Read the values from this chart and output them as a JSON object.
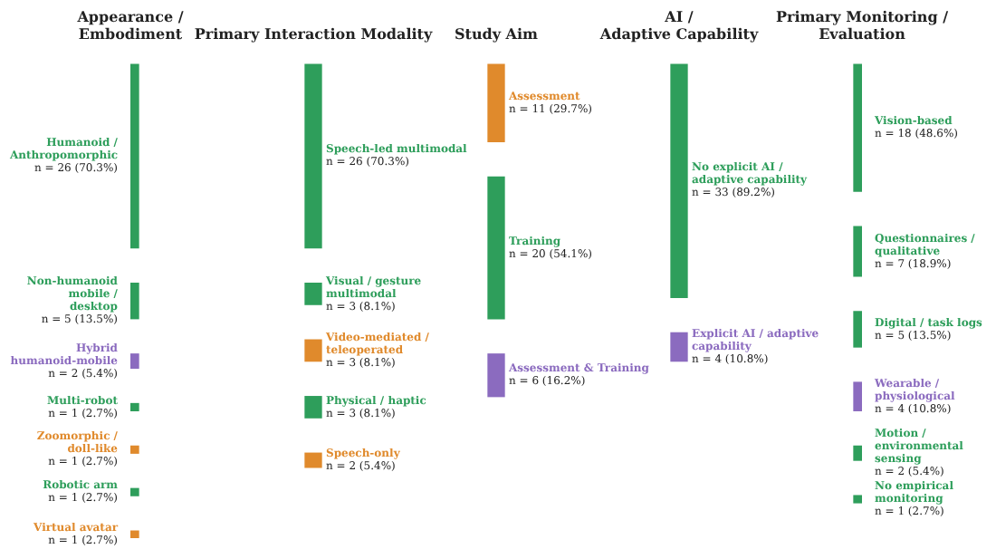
{
  "chart_data": {
    "type": "other",
    "categories": [
      "Appearance / Embodiment",
      "Primary Interaction Modality",
      "Study Aim",
      "AI / Adaptive Capability",
      "Primary Monitoring / Evaluation"
    ],
    "series": [
      {
        "name": "Humanoid / Anthropomorphic",
        "color": "#2e9e5b",
        "values": [
          26,
          null,
          null,
          null,
          null
        ],
        "value_labels": [
          "n = 26 (70.3%)",
          null,
          null,
          null,
          null
        ]
      },
      {
        "name": "Non-humanoid mobile / desktop",
        "color": "#2e9e5b",
        "values": [
          5,
          null,
          null,
          null,
          null
        ],
        "value_labels": [
          "n = 5 (13.5%)",
          null,
          null,
          null,
          null
        ]
      },
      {
        "name": "Hybrid humanoid-mobile",
        "color": "#8b6bbf",
        "values": [
          2,
          null,
          null,
          null,
          null
        ],
        "value_labels": [
          "n = 2 (5.4%)",
          null,
          null,
          null,
          null
        ]
      },
      {
        "name": "Multi-robot",
        "color": "#2e9e5b",
        "values": [
          1,
          null,
          null,
          null,
          null
        ],
        "value_labels": [
          "n = 1 (2.7%)",
          null,
          null,
          null,
          null
        ]
      },
      {
        "name": "Zoomorphic / doll-like",
        "color": "#e08a2c",
        "values": [
          1,
          null,
          null,
          null,
          null
        ],
        "value_labels": [
          "n = 1 (2.7%)",
          null,
          null,
          null,
          null
        ]
      },
      {
        "name": "Robotic arm",
        "color": "#2e9e5b",
        "values": [
          1,
          null,
          null,
          null,
          null
        ],
        "value_labels": [
          "n = 1 (2.7%)",
          null,
          null,
          null,
          null
        ]
      },
      {
        "name": "Virtual avatar",
        "color": "#e08a2c",
        "values": [
          1,
          null,
          null,
          null,
          null
        ],
        "value_labels": [
          "n = 1 (2.7%)",
          null,
          null,
          null,
          null
        ]
      },
      {
        "name": "Speech-led multimodal",
        "color": "#2e9e5b",
        "values": [
          null,
          26,
          null,
          null,
          null
        ],
        "value_labels": [
          null,
          "n = 26 (70.3%)",
          null,
          null,
          null
        ]
      },
      {
        "name": "Visual / gesture multimodal",
        "color": "#2e9e5b",
        "values": [
          null,
          3,
          null,
          null,
          null
        ],
        "value_labels": [
          null,
          "n = 3 (8.1%)",
          null,
          null,
          null
        ]
      },
      {
        "name": "Video-mediated / teleoperated",
        "color": "#e08a2c",
        "values": [
          null,
          3,
          null,
          null,
          null
        ],
        "value_labels": [
          null,
          "n = 3 (8.1%)",
          null,
          null,
          null
        ]
      },
      {
        "name": "Physical / haptic",
        "color": "#2e9e5b",
        "values": [
          null,
          3,
          null,
          null,
          null
        ],
        "value_labels": [
          null,
          "n = 3 (8.1%)",
          null,
          null,
          null
        ]
      },
      {
        "name": "Speech-only",
        "color": "#e08a2c",
        "values": [
          null,
          2,
          null,
          null,
          null
        ],
        "value_labels": [
          null,
          "n = 2 (5.4%)",
          null,
          null,
          null
        ]
      },
      {
        "name": "Assessment",
        "color": "#e08a2c",
        "values": [
          null,
          null,
          11,
          null,
          null
        ],
        "value_labels": [
          null,
          null,
          "n = 11 (29.7%)",
          null,
          null
        ]
      },
      {
        "name": "Training",
        "color": "#2e9e5b",
        "values": [
          null,
          null,
          20,
          null,
          null
        ],
        "value_labels": [
          null,
          null,
          "n = 20 (54.1%)",
          null,
          null
        ]
      },
      {
        "name": "Assessment & Training",
        "color": "#8b6bbf",
        "values": [
          null,
          null,
          6,
          null,
          null
        ],
        "value_labels": [
          null,
          null,
          "n = 6 (16.2%)",
          null,
          null
        ]
      },
      {
        "name": "No explicit AI / adaptive capability",
        "color": "#2e9e5b",
        "values": [
          null,
          null,
          null,
          33,
          null
        ],
        "value_labels": [
          null,
          null,
          null,
          "n = 33 (89.2%)",
          null
        ]
      },
      {
        "name": "Explicit AI / adaptive capability",
        "color": "#8b6bbf",
        "values": [
          null,
          null,
          null,
          4,
          null
        ],
        "value_labels": [
          null,
          null,
          null,
          "n = 4 (10.8%)",
          null
        ]
      },
      {
        "name": "Vision-based",
        "color": "#2e9e5b",
        "values": [
          null,
          null,
          null,
          null,
          18
        ],
        "value_labels": [
          null,
          null,
          null,
          null,
          "n = 18 (48.6%)"
        ]
      },
      {
        "name": "Questionnaires / qualitative",
        "color": "#2e9e5b",
        "values": [
          null,
          null,
          null,
          null,
          7
        ],
        "value_labels": [
          null,
          null,
          null,
          null,
          "n = 7 (18.9%)"
        ]
      },
      {
        "name": "Digital / task logs",
        "color": "#2e9e5b",
        "values": [
          null,
          null,
          null,
          null,
          5
        ],
        "value_labels": [
          null,
          null,
          null,
          null,
          "n = 5 (13.5%)"
        ]
      },
      {
        "name": "Wearable / physiological",
        "color": "#8b6bbf",
        "values": [
          null,
          null,
          null,
          null,
          4
        ],
        "value_labels": [
          null,
          null,
          null,
          null,
          "n = 4 (10.8%)"
        ]
      },
      {
        "name": "Motion / environmental sensing",
        "color": "#2e9e5b",
        "values": [
          null,
          null,
          null,
          null,
          2
        ],
        "value_labels": [
          null,
          null,
          null,
          null,
          "n = 2 (5.4%)"
        ]
      },
      {
        "name": "No empirical monitoring",
        "color": "#2e9e5b",
        "values": [
          null,
          null,
          null,
          null,
          1
        ],
        "value_labels": [
          null,
          null,
          null,
          null,
          "n = 1 (2.7%)"
        ]
      }
    ]
  }
}
